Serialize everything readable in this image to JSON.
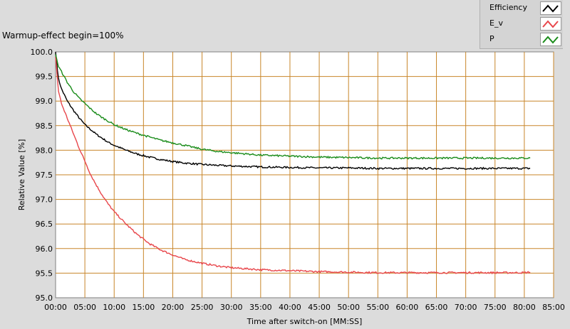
{
  "chart_data": {
    "type": "line",
    "title": "Warmup-effect begin=100%",
    "xlabel": "Time after switch-on [MM:SS]",
    "ylabel": "Relative Value [%]",
    "xlim": [
      0,
      85
    ],
    "ylim": [
      95.0,
      100.0
    ],
    "x_ticks": [
      "00:00",
      "05:00",
      "10:00",
      "15:00",
      "20:00",
      "25:00",
      "30:00",
      "35:00",
      "40:00",
      "45:00",
      "50:00",
      "55:00",
      "60:00",
      "65:00",
      "70:00",
      "75:00",
      "80:00",
      "85:00"
    ],
    "y_ticks": [
      "100.0",
      "99.5",
      "99.0",
      "98.5",
      "98.0",
      "97.5",
      "97.0",
      "96.5",
      "96.0",
      "95.5",
      "95.0"
    ],
    "grid": true,
    "legend_position": "top-right",
    "x_minutes": [
      0,
      0.5,
      1,
      2,
      3,
      4,
      5,
      6,
      7,
      8,
      9,
      10,
      12,
      14,
      16,
      18,
      20,
      22,
      25,
      28,
      30,
      35,
      40,
      45,
      50,
      55,
      60,
      65,
      70,
      75,
      80,
      81
    ],
    "series": [
      {
        "name": "Efficiency",
        "color": "#000000",
        "values": [
          100.0,
          99.45,
          99.25,
          99.0,
          98.82,
          98.66,
          98.52,
          98.42,
          98.32,
          98.24,
          98.16,
          98.1,
          98.0,
          97.92,
          97.86,
          97.81,
          97.77,
          97.74,
          97.71,
          97.69,
          97.68,
          97.66,
          97.65,
          97.64,
          97.64,
          97.63,
          97.63,
          97.63,
          97.63,
          97.63,
          97.63,
          97.63
        ]
      },
      {
        "name": "E_v",
        "color": "#e8464b",
        "values": [
          99.9,
          99.2,
          98.95,
          98.65,
          98.35,
          98.05,
          97.78,
          97.5,
          97.28,
          97.08,
          96.9,
          96.75,
          96.5,
          96.28,
          96.1,
          95.97,
          95.87,
          95.78,
          95.7,
          95.64,
          95.61,
          95.57,
          95.55,
          95.53,
          95.52,
          95.51,
          95.51,
          95.51,
          95.51,
          95.51,
          95.51,
          95.52
        ]
      },
      {
        "name": "P",
        "color": "#1a8c1a",
        "values": [
          99.95,
          99.7,
          99.6,
          99.38,
          99.2,
          99.06,
          98.95,
          98.84,
          98.74,
          98.66,
          98.59,
          98.52,
          98.42,
          98.34,
          98.27,
          98.2,
          98.15,
          98.1,
          98.02,
          97.97,
          97.95,
          97.9,
          97.88,
          97.86,
          97.85,
          97.84,
          97.84,
          97.84,
          97.84,
          97.84,
          97.84,
          97.84
        ]
      }
    ]
  }
}
